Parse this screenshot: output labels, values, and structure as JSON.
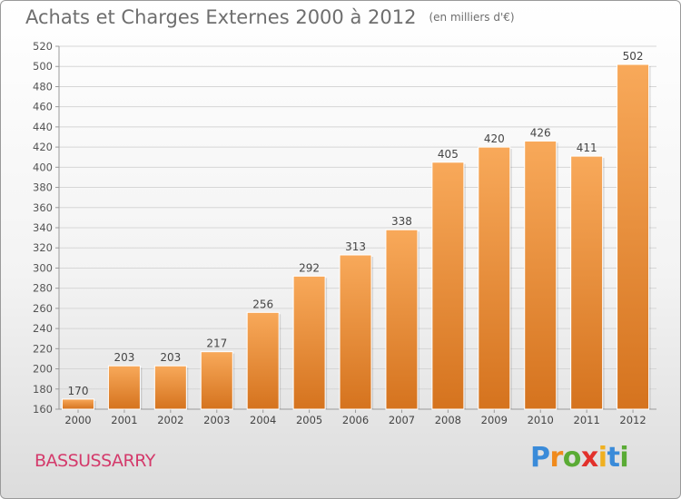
{
  "title": "Achats et Charges Externes 2000 à 2012",
  "unit": "(en milliers d'€)",
  "city": "BASSUSSARRY",
  "logo": {
    "letters": [
      "P",
      "r",
      "o",
      "x",
      "i",
      "t",
      "i"
    ],
    "colors": [
      "#3a8bd9",
      "#f08a1c",
      "#5aab35",
      "#e2312b",
      "#f0b020",
      "#3a8bd9",
      "#5aab35"
    ]
  },
  "colors": {
    "bar_top": "#f8a95a",
    "bar_bottom": "#d5731e",
    "accent": "#d43a6b"
  },
  "chart_data": {
    "type": "bar",
    "categories": [
      "2000",
      "2001",
      "2002",
      "2003",
      "2004",
      "2005",
      "2006",
      "2007",
      "2008",
      "2009",
      "2010",
      "2011",
      "2012"
    ],
    "values": [
      170,
      203,
      203,
      217,
      256,
      292,
      313,
      338,
      405,
      420,
      426,
      411,
      502
    ],
    "data_labels": [
      "170",
      "203",
      "203",
      "217",
      "256",
      "292",
      "313",
      "338",
      "405",
      "420",
      "426",
      "411",
      "502"
    ],
    "yticks": [
      "160",
      "180",
      "200",
      "220",
      "240",
      "260",
      "280",
      "300",
      "320",
      "340",
      "360",
      "380",
      "400",
      "420",
      "440",
      "460",
      "480",
      "500",
      "520"
    ],
    "ylim": [
      160,
      520
    ],
    "grid": true
  }
}
